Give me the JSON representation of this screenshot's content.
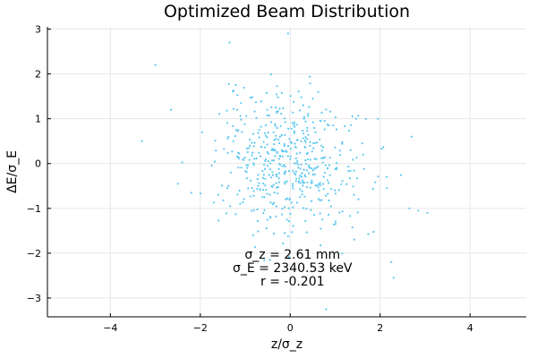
{
  "chart_data": {
    "type": "scatter",
    "title": "Optimized Beam Distribution",
    "xlabel": "z/σ_z",
    "ylabel": "ΔE/σ_E",
    "xlim": [
      -5.4,
      5.25
    ],
    "ylim": [
      -3.42,
      3.05
    ],
    "xticks": [
      -4,
      -2,
      0,
      2,
      4
    ],
    "xtick_labels": [
      "−4",
      "−2",
      "0",
      "2",
      "4"
    ],
    "yticks": [
      -3,
      -2,
      -1,
      0,
      1,
      2,
      3
    ],
    "ytick_labels": [
      "−3",
      "−2",
      "−1",
      "0",
      "1",
      "2",
      "3"
    ],
    "grid": true,
    "legend": "none",
    "marker_color": "#5ec8f0",
    "annotations": [
      "σ_z = 2.61 mm",
      "σ_E = 2340.53 keV",
      "r = -0.201"
    ],
    "outliers": [
      [
        -1.35,
        2.7
      ],
      [
        -3.0,
        2.2
      ],
      [
        -0.05,
        2.9
      ],
      [
        0.8,
        -3.25
      ],
      [
        2.3,
        -2.55
      ],
      [
        2.25,
        -2.2
      ],
      [
        3.05,
        -1.1
      ],
      [
        2.85,
        -1.05
      ],
      [
        2.65,
        -1.0
      ],
      [
        -3.3,
        0.5
      ],
      [
        -2.65,
        1.2
      ],
      [
        -2.2,
        -0.65
      ],
      [
        -2.5,
        -0.45
      ],
      [
        2.7,
        0.6
      ],
      [
        2.15,
        -0.55
      ],
      [
        1.95,
        1.0
      ]
    ],
    "cloud": {
      "n": 520,
      "sigma_x": 0.8,
      "sigma_y": 0.82,
      "r": -0.201,
      "seed": 7
    }
  }
}
